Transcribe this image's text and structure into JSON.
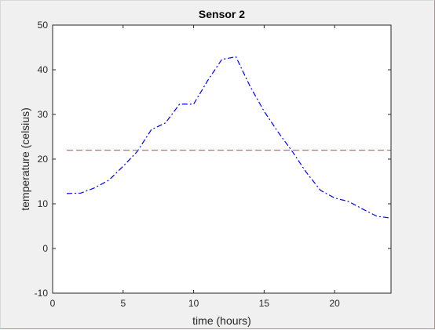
{
  "chart_data": {
    "type": "line",
    "title": "Sensor 2",
    "xlabel": "time (hours)",
    "ylabel": "temperature (celsius)",
    "xlim": [
      0,
      24
    ],
    "ylim": [
      -10,
      50
    ],
    "xticks": [
      0,
      5,
      10,
      15,
      20
    ],
    "yticks": [
      -10,
      0,
      10,
      20,
      30,
      40,
      50
    ],
    "grid": false,
    "series": [
      {
        "style": "dash-dot",
        "color": "#0000ff",
        "x": [
          1,
          2,
          3,
          4,
          5,
          6,
          7,
          8,
          9,
          10,
          11,
          12,
          13,
          14,
          15,
          16,
          17,
          18,
          19,
          20,
          21,
          22,
          23,
          24
        ],
        "y": [
          12.3,
          12.4,
          13.6,
          15.3,
          18.4,
          21.7,
          26.6,
          28.1,
          32.3,
          32.3,
          37.6,
          42.3,
          42.9,
          36.3,
          30.7,
          26.0,
          21.7,
          17.0,
          13.0,
          11.3,
          10.5,
          8.8,
          7.2,
          6.8
        ]
      },
      {
        "style": "dashed",
        "color": "#e06060",
        "x": [
          1,
          24
        ],
        "y": [
          22,
          22
        ]
      }
    ]
  }
}
